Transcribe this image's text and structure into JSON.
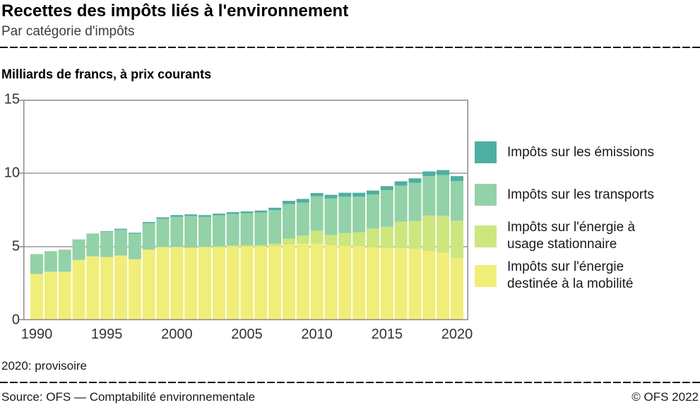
{
  "header": {
    "title": "Recettes des impôts liés à l'environnement",
    "subtitle": "Par catégorie d'impôts",
    "unit_label": "Milliards de francs, à prix courants"
  },
  "footer": {
    "note": "2020: provisoire",
    "source": "Source: OFS — Comptabilité environnementale",
    "copyright": "© OFS 2022"
  },
  "colors": {
    "emissions": "#4EAFA0",
    "transports": "#93D1A8",
    "stationary": "#CDE67E",
    "mobility": "#F0EE79",
    "grid": "#9C9C9C",
    "frame": "#8C8C8C",
    "axis_text": "#333333"
  },
  "legend": {
    "items": [
      {
        "key": "emissions",
        "label": "Impôts sur les émissions"
      },
      {
        "key": "transports",
        "label": "Impôts sur les transports"
      },
      {
        "key": "stationary",
        "label": "Impôts sur l'énergie à\nusage stationnaire"
      },
      {
        "key": "mobility",
        "label": "Impôts sur l'énergie\ndestinée à la mobilité"
      }
    ]
  },
  "chart_data": {
    "type": "bar",
    "stacked": true,
    "title": "Recettes des impôts liés à l'environnement",
    "subtitle": "Par catégorie d'impôts",
    "ylabel": "Milliards de francs, à prix courants",
    "note": "2020: provisoire",
    "ylim": [
      0,
      15
    ],
    "yticks": [
      0,
      5,
      10,
      15
    ],
    "xticks": [
      1990,
      1995,
      2000,
      2005,
      2010,
      2015,
      2020
    ],
    "grid": "horizontal",
    "legend_position": "right",
    "years": [
      1990,
      1991,
      1992,
      1993,
      1994,
      1995,
      1996,
      1997,
      1998,
      1999,
      2000,
      2001,
      2002,
      2003,
      2004,
      2005,
      2006,
      2007,
      2008,
      2009,
      2010,
      2011,
      2012,
      2013,
      2014,
      2015,
      2016,
      2017,
      2018,
      2019,
      2020
    ],
    "series": [
      {
        "name": "Impôts sur l'énergie destinée à la mobilité",
        "key": "mobility",
        "color": "#F0EE79",
        "values": [
          3.15,
          3.3,
          3.3,
          4.1,
          4.35,
          4.3,
          4.4,
          4.15,
          4.8,
          4.95,
          4.95,
          4.9,
          4.95,
          4.95,
          5.0,
          5.0,
          5.0,
          5.05,
          5.15,
          5.2,
          5.2,
          5.1,
          5.05,
          5.05,
          4.95,
          4.9,
          4.9,
          4.85,
          4.7,
          4.6,
          4.25
        ]
      },
      {
        "name": "Impôts sur l'énergie à usage stationnaire",
        "key": "stationary",
        "color": "#CDE67E",
        "values": [
          0.0,
          0.0,
          0.0,
          0.0,
          0.0,
          0.0,
          0.0,
          0.0,
          0.0,
          0.05,
          0.05,
          0.05,
          0.05,
          0.08,
          0.08,
          0.1,
          0.1,
          0.15,
          0.4,
          0.55,
          0.88,
          0.7,
          0.88,
          0.93,
          1.28,
          1.45,
          1.8,
          1.9,
          2.42,
          2.5,
          2.52
        ]
      },
      {
        "name": "Impôts sur les transports",
        "key": "transports",
        "color": "#93D1A8",
        "values": [
          1.35,
          1.4,
          1.5,
          1.4,
          1.55,
          1.7,
          1.75,
          1.73,
          1.8,
          1.9,
          2.03,
          2.13,
          2.03,
          2.1,
          2.15,
          2.18,
          2.23,
          2.3,
          2.35,
          2.25,
          2.35,
          2.48,
          2.47,
          2.42,
          2.32,
          2.5,
          2.45,
          2.6,
          2.68,
          2.78,
          2.7
        ]
      },
      {
        "name": "Impôts sur les émissions",
        "key": "emissions",
        "color": "#4EAFA0",
        "values": [
          0.0,
          0.0,
          0.0,
          0.0,
          0.0,
          0.05,
          0.07,
          0.07,
          0.08,
          0.1,
          0.12,
          0.12,
          0.12,
          0.12,
          0.12,
          0.12,
          0.13,
          0.15,
          0.22,
          0.25,
          0.22,
          0.25,
          0.27,
          0.27,
          0.27,
          0.27,
          0.3,
          0.3,
          0.32,
          0.33,
          0.33
        ]
      }
    ]
  }
}
